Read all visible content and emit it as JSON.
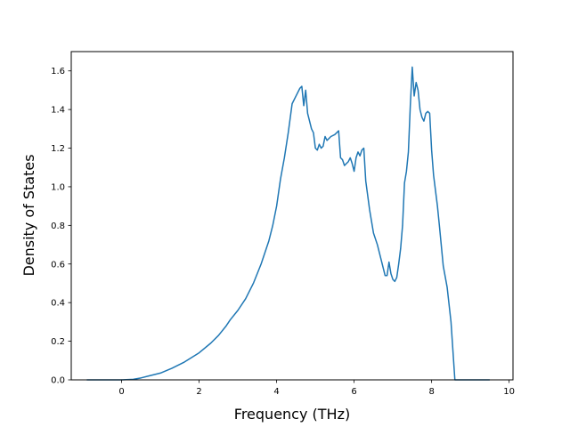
{
  "chart_data": {
    "type": "line",
    "title": "",
    "xlabel": "Frequency (THz)",
    "ylabel": "Density of States",
    "xlim": [
      -1.3,
      10.1
    ],
    "ylim": [
      0.0,
      1.7
    ],
    "xticks": [
      0,
      2,
      4,
      6,
      8,
      10
    ],
    "xtick_labels": [
      "0",
      "2",
      "4",
      "6",
      "8",
      "10"
    ],
    "yticks": [
      0.0,
      0.2,
      0.4,
      0.6,
      0.8,
      1.0,
      1.2,
      1.4,
      1.6
    ],
    "ytick_labels": [
      "0.0",
      "0.2",
      "0.4",
      "0.6",
      "0.8",
      "1.0",
      "1.2",
      "1.4",
      "1.6"
    ],
    "grid": false,
    "legend": "none",
    "series": [
      {
        "color": "#1f77b4",
        "x": [
          -0.9,
          0.0,
          0.3,
          0.5,
          0.7,
          1.0,
          1.3,
          1.6,
          2.0,
          2.3,
          2.5,
          2.7,
          2.8,
          3.0,
          3.2,
          3.4,
          3.6,
          3.8,
          3.9,
          4.0,
          4.1,
          4.2,
          4.3,
          4.4,
          4.5,
          4.6,
          4.65,
          4.7,
          4.75,
          4.8,
          4.9,
          4.95,
          5.0,
          5.05,
          5.1,
          5.15,
          5.2,
          5.25,
          5.3,
          5.4,
          5.5,
          5.6,
          5.65,
          5.7,
          5.75,
          5.8,
          5.85,
          5.9,
          5.95,
          6.0,
          6.05,
          6.1,
          6.15,
          6.2,
          6.25,
          6.3,
          6.4,
          6.5,
          6.6,
          6.7,
          6.8,
          6.85,
          6.9,
          6.95,
          7.0,
          7.05,
          7.1,
          7.15,
          7.2,
          7.25,
          7.3,
          7.35,
          7.4,
          7.45,
          7.5,
          7.55,
          7.6,
          7.65,
          7.7,
          7.75,
          7.8,
          7.85,
          7.9,
          7.95,
          8.0,
          8.05,
          8.1,
          8.15,
          8.2,
          8.3,
          8.4,
          8.5,
          8.6,
          8.65,
          8.7,
          9.0,
          9.5
        ],
        "y": [
          0.0,
          0.0,
          0.003,
          0.01,
          0.02,
          0.035,
          0.06,
          0.09,
          0.14,
          0.19,
          0.23,
          0.28,
          0.31,
          0.36,
          0.42,
          0.5,
          0.6,
          0.72,
          0.8,
          0.9,
          1.04,
          1.15,
          1.28,
          1.43,
          1.47,
          1.51,
          1.52,
          1.42,
          1.5,
          1.38,
          1.3,
          1.28,
          1.2,
          1.19,
          1.22,
          1.2,
          1.21,
          1.26,
          1.24,
          1.26,
          1.27,
          1.29,
          1.15,
          1.14,
          1.11,
          1.12,
          1.13,
          1.15,
          1.12,
          1.08,
          1.15,
          1.18,
          1.16,
          1.19,
          1.2,
          1.03,
          0.88,
          0.76,
          0.7,
          0.62,
          0.54,
          0.54,
          0.61,
          0.55,
          0.52,
          0.51,
          0.53,
          0.6,
          0.68,
          0.8,
          1.02,
          1.08,
          1.18,
          1.42,
          1.62,
          1.47,
          1.54,
          1.5,
          1.4,
          1.36,
          1.34,
          1.38,
          1.39,
          1.38,
          1.19,
          1.06,
          0.98,
          0.9,
          0.8,
          0.59,
          0.48,
          0.3,
          0.0,
          0.0,
          0.0,
          0.0,
          0.0
        ]
      }
    ]
  }
}
